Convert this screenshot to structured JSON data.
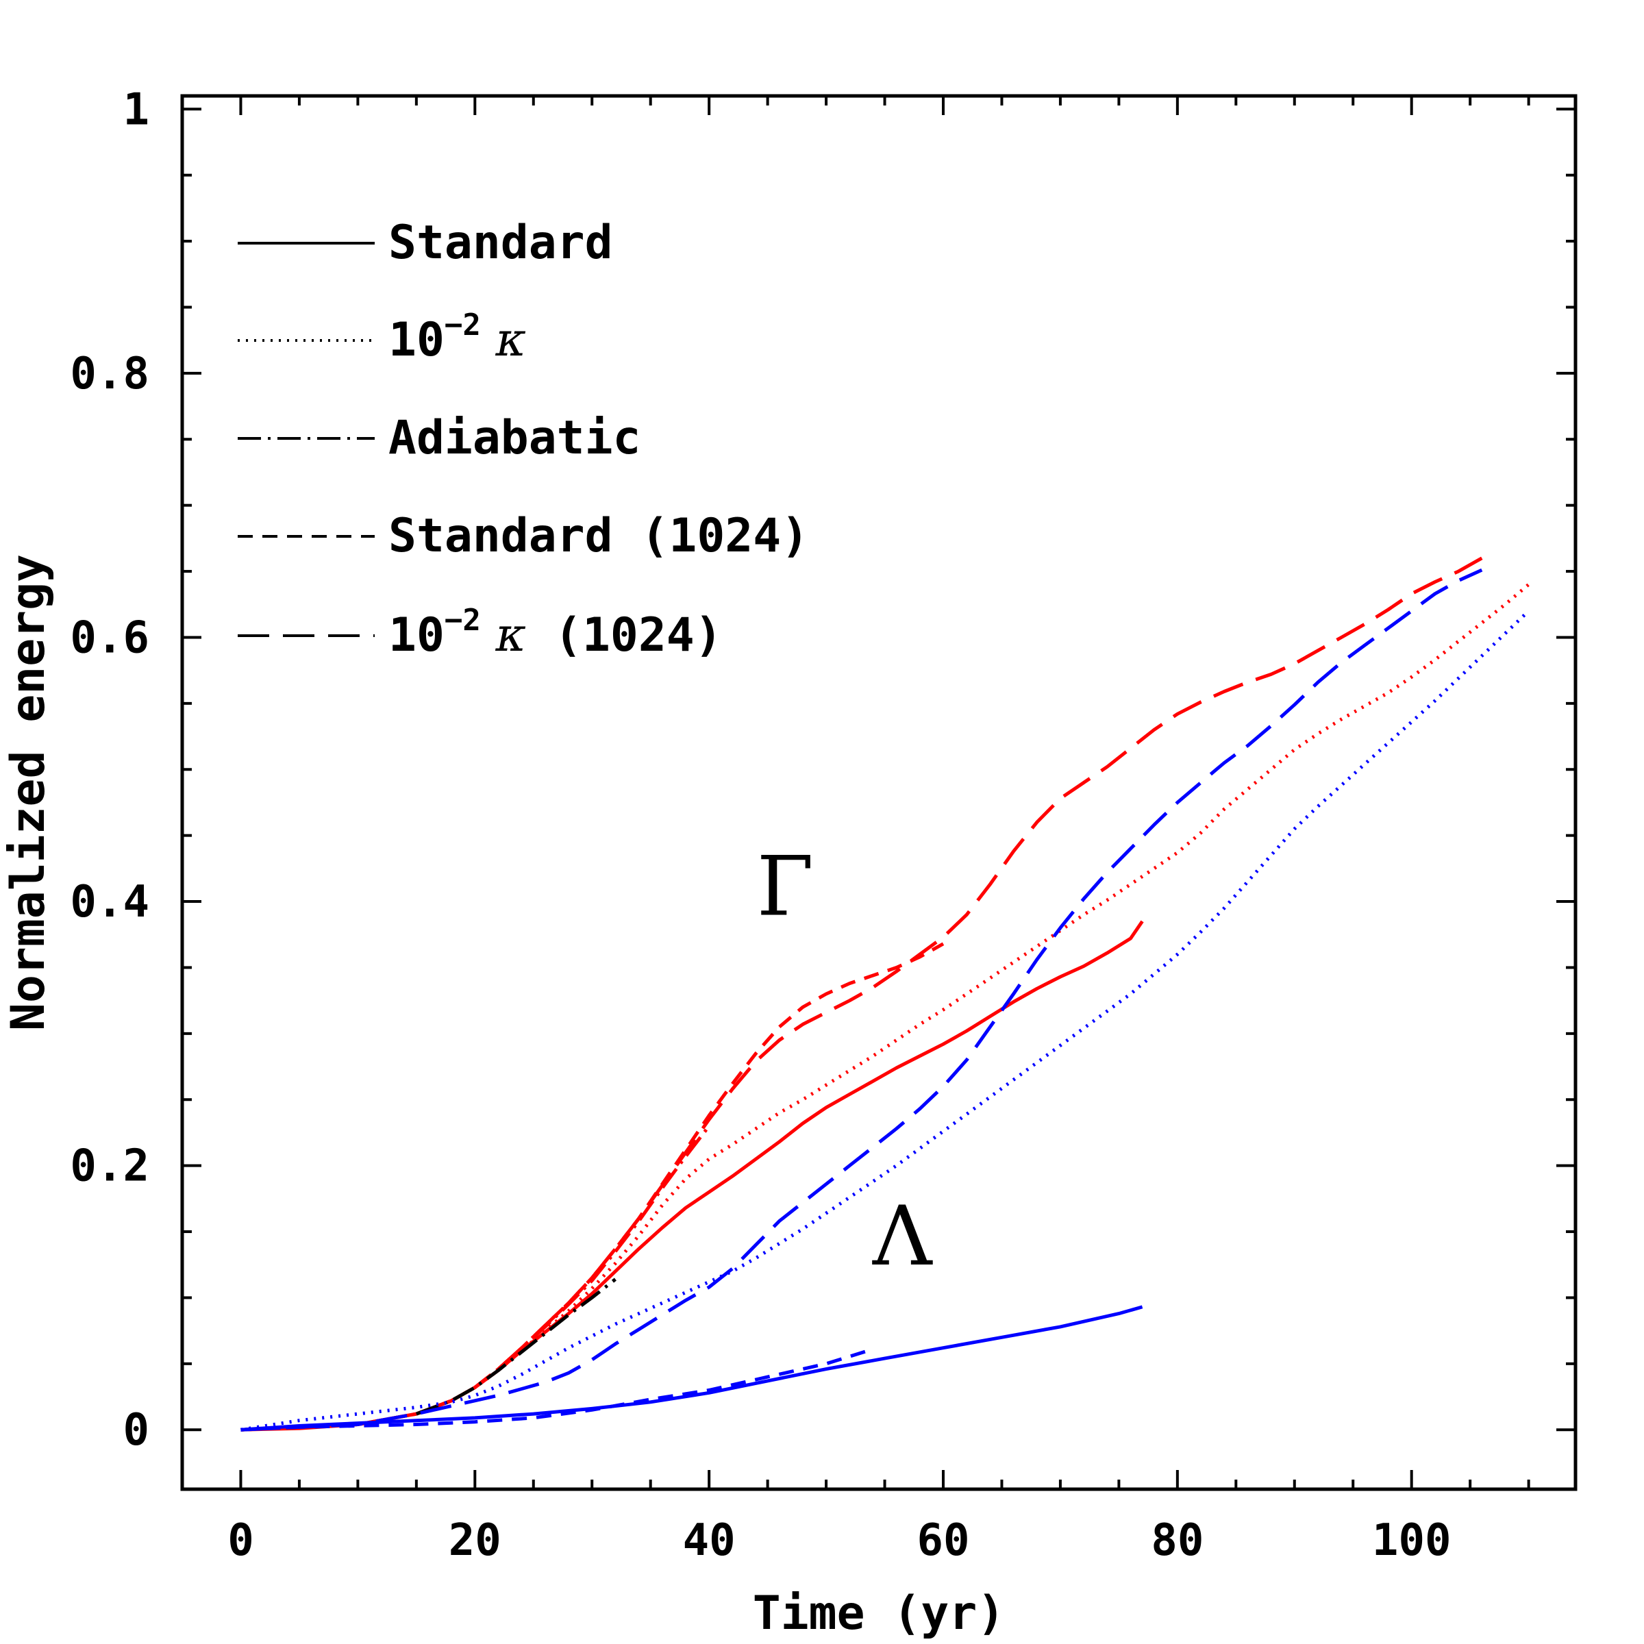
{
  "chart_data": {
    "type": "line",
    "xlabel": "Time (yr)",
    "ylabel": "Normalized energy",
    "xlim": [
      -5,
      114
    ],
    "ylim": [
      -0.045,
      1.01
    ],
    "x_ticks": [
      0,
      20,
      40,
      60,
      80,
      100
    ],
    "x_tick_labels": [
      "0",
      "20",
      "40",
      "60",
      "80",
      "100"
    ],
    "y_ticks": [
      0,
      0.2,
      0.4,
      0.6,
      0.8,
      1
    ],
    "y_tick_labels": [
      "0",
      "0.2",
      "0.4",
      "0.6",
      "0.8",
      "1"
    ],
    "grid": false,
    "legend_position": "top-left",
    "legend": [
      {
        "key": "standard",
        "label": "Standard",
        "dash": "solid"
      },
      {
        "key": "kappa",
        "label": "10",
        "exponent": "−2",
        "symbol": "κ",
        "suffix": "",
        "dash": "dotted"
      },
      {
        "key": "adiabatic",
        "label": "Adiabatic",
        "dash": "dashdot"
      },
      {
        "key": "standard1024",
        "label": "Standard (1024)",
        "dash": "dashed"
      },
      {
        "key": "kappa1024",
        "label": "10",
        "exponent": "−2",
        "symbol": "κ",
        "suffix": " (1024)",
        "dash": "longdash"
      }
    ],
    "annotations": [
      {
        "text": "Γ",
        "x": 46.5,
        "y": 0.39
      },
      {
        "text": "Λ",
        "x": 56.5,
        "y": 0.125
      }
    ],
    "colors": {
      "Gamma": "#ff0000",
      "Lambda": "#0000ff",
      "Adiabatic": "#000000"
    },
    "series": [
      {
        "name": "Γ Standard",
        "color": "#ff0000",
        "dash": "solid",
        "x": [
          0,
          5,
          10,
          15,
          18,
          20,
          22,
          24,
          26,
          28,
          30,
          32,
          34,
          36,
          38,
          40,
          42,
          44,
          46,
          48,
          50,
          52,
          54,
          56,
          58,
          60,
          62,
          64,
          66,
          68,
          70,
          72,
          74,
          76,
          77
        ],
        "y": [
          0,
          0.001,
          0.004,
          0.012,
          0.022,
          0.032,
          0.045,
          0.06,
          0.074,
          0.088,
          0.103,
          0.12,
          0.137,
          0.153,
          0.168,
          0.18,
          0.192,
          0.205,
          0.218,
          0.232,
          0.244,
          0.254,
          0.264,
          0.274,
          0.283,
          0.292,
          0.302,
          0.313,
          0.324,
          0.334,
          0.343,
          0.351,
          0.361,
          0.372,
          0.385
        ]
      },
      {
        "name": "Γ 10^-2 κ",
        "color": "#ff0000",
        "dash": "dotted",
        "x": [
          0,
          10,
          15,
          18,
          20,
          22,
          24,
          26,
          28,
          30,
          32,
          34,
          36,
          38,
          40,
          42,
          44,
          46,
          48,
          50,
          52,
          54,
          56,
          58,
          60,
          62,
          64,
          66,
          68,
          70,
          72,
          74,
          76,
          78,
          80,
          82,
          84,
          86,
          88,
          90,
          92,
          94,
          96,
          98,
          100,
          102,
          104,
          106,
          108,
          110
        ],
        "y": [
          0,
          0.004,
          0.012,
          0.022,
          0.032,
          0.045,
          0.06,
          0.075,
          0.09,
          0.107,
          0.126,
          0.147,
          0.17,
          0.19,
          0.205,
          0.216,
          0.228,
          0.24,
          0.25,
          0.261,
          0.272,
          0.283,
          0.295,
          0.307,
          0.318,
          0.33,
          0.342,
          0.354,
          0.366,
          0.378,
          0.39,
          0.401,
          0.413,
          0.425,
          0.437,
          0.452,
          0.47,
          0.485,
          0.5,
          0.515,
          0.527,
          0.538,
          0.548,
          0.558,
          0.57,
          0.583,
          0.597,
          0.611,
          0.625,
          0.64
        ]
      },
      {
        "name": "Γ Adiabatic",
        "color": "#ff0000",
        "dash": "dashdot",
        "x": [
          0,
          10,
          15,
          18,
          20,
          22,
          24,
          26,
          28,
          30,
          32,
          34,
          36,
          38,
          40
        ],
        "y": [
          0,
          0.004,
          0.012,
          0.022,
          0.032,
          0.046,
          0.062,
          0.078,
          0.095,
          0.113,
          0.135,
          0.158,
          0.183,
          0.207,
          0.23
        ]
      },
      {
        "name": "Γ Standard (1024)",
        "color": "#ff0000",
        "dash": "dashed",
        "x": [
          0,
          10,
          15,
          18,
          20,
          22,
          24,
          26,
          28,
          30,
          32,
          34,
          36,
          38,
          40,
          42,
          44,
          46,
          48,
          50,
          52,
          54,
          56,
          58,
          60
        ],
        "y": [
          0,
          0.004,
          0.012,
          0.022,
          0.032,
          0.046,
          0.062,
          0.079,
          0.096,
          0.115,
          0.137,
          0.16,
          0.186,
          0.212,
          0.238,
          0.262,
          0.285,
          0.305,
          0.32,
          0.33,
          0.338,
          0.344,
          0.35,
          0.358,
          0.368
        ]
      },
      {
        "name": "Γ 10^-2 κ (1024)",
        "color": "#ff0000",
        "dash": "longdash",
        "x": [
          0,
          10,
          15,
          18,
          20,
          22,
          24,
          26,
          28,
          30,
          32,
          34,
          36,
          38,
          40,
          42,
          44,
          46,
          48,
          50,
          52,
          54,
          56,
          58,
          60,
          62,
          64,
          66,
          68,
          70,
          72,
          74,
          76,
          78,
          80,
          82,
          84,
          86,
          88,
          90,
          92,
          94,
          96,
          98,
          100,
          102,
          104,
          106
        ],
        "y": [
          0,
          0.004,
          0.012,
          0.022,
          0.032,
          0.046,
          0.062,
          0.079,
          0.096,
          0.115,
          0.137,
          0.16,
          0.185,
          0.21,
          0.235,
          0.258,
          0.279,
          0.295,
          0.307,
          0.316,
          0.325,
          0.335,
          0.347,
          0.36,
          0.373,
          0.39,
          0.413,
          0.438,
          0.46,
          0.478,
          0.49,
          0.502,
          0.516,
          0.53,
          0.542,
          0.551,
          0.559,
          0.566,
          0.572,
          0.58,
          0.59,
          0.6,
          0.61,
          0.621,
          0.633,
          0.642,
          0.65,
          0.66
        ]
      },
      {
        "name": "Γ Adiabatic overlay",
        "color": "#000000",
        "dash": "dashdot",
        "x": [
          15,
          18,
          20,
          22,
          24,
          26,
          28,
          30,
          32
        ],
        "y": [
          0.012,
          0.022,
          0.032,
          0.045,
          0.059,
          0.073,
          0.087,
          0.1,
          0.114
        ]
      },
      {
        "name": "Λ Standard",
        "color": "#0000ff",
        "dash": "solid",
        "x": [
          0,
          5,
          10,
          15,
          20,
          25,
          30,
          35,
          40,
          45,
          50,
          55,
          60,
          65,
          70,
          75,
          77
        ],
        "y": [
          0,
          0.003,
          0.005,
          0.007,
          0.009,
          0.012,
          0.016,
          0.021,
          0.028,
          0.037,
          0.046,
          0.054,
          0.062,
          0.07,
          0.078,
          0.088,
          0.093
        ]
      },
      {
        "name": "Λ 10^-2 κ",
        "color": "#0000ff",
        "dash": "dotted",
        "x": [
          0,
          5,
          10,
          15,
          18,
          20,
          22,
          24,
          26,
          28,
          30,
          32,
          34,
          36,
          38,
          40,
          42,
          44,
          46,
          48,
          50,
          52,
          54,
          56,
          58,
          60,
          62,
          64,
          66,
          68,
          70,
          72,
          74,
          76,
          78,
          80,
          82,
          84,
          86,
          88,
          90,
          92,
          94,
          96,
          98,
          100,
          102,
          104,
          106,
          108,
          110
        ],
        "y": [
          0,
          0.007,
          0.012,
          0.017,
          0.021,
          0.026,
          0.033,
          0.042,
          0.052,
          0.062,
          0.071,
          0.08,
          0.088,
          0.096,
          0.104,
          0.112,
          0.12,
          0.13,
          0.141,
          0.152,
          0.164,
          0.176,
          0.188,
          0.2,
          0.213,
          0.226,
          0.239,
          0.252,
          0.265,
          0.278,
          0.291,
          0.304,
          0.317,
          0.33,
          0.345,
          0.36,
          0.377,
          0.395,
          0.415,
          0.435,
          0.455,
          0.472,
          0.488,
          0.504,
          0.52,
          0.536,
          0.552,
          0.569,
          0.586,
          0.603,
          0.62
        ]
      },
      {
        "name": "Λ Standard (1024)",
        "color": "#0000ff",
        "dash": "dashed",
        "x": [
          0,
          5,
          10,
          15,
          20,
          25,
          30,
          35,
          40,
          45,
          50,
          54
        ],
        "y": [
          0,
          0.002,
          0.003,
          0.004,
          0.006,
          0.009,
          0.015,
          0.023,
          0.03,
          0.04,
          0.05,
          0.061
        ]
      },
      {
        "name": "Λ 10^-2 κ (1024)",
        "color": "#0000ff",
        "dash": "longdash",
        "x": [
          0,
          10,
          15,
          18,
          20,
          22,
          24,
          26,
          28,
          30,
          32,
          34,
          36,
          38,
          40,
          42,
          44,
          46,
          48,
          50,
          52,
          54,
          56,
          58,
          60,
          62,
          64,
          66,
          68,
          70,
          72,
          74,
          76,
          78,
          80,
          82,
          84,
          86,
          88,
          90,
          92,
          94,
          96,
          98,
          100,
          102,
          104,
          106
        ],
        "y": [
          0,
          0.004,
          0.012,
          0.018,
          0.022,
          0.026,
          0.031,
          0.036,
          0.043,
          0.053,
          0.065,
          0.076,
          0.087,
          0.098,
          0.108,
          0.122,
          0.14,
          0.158,
          0.172,
          0.186,
          0.2,
          0.214,
          0.228,
          0.243,
          0.26,
          0.28,
          0.305,
          0.33,
          0.356,
          0.38,
          0.402,
          0.422,
          0.44,
          0.458,
          0.475,
          0.49,
          0.505,
          0.518,
          0.533,
          0.549,
          0.566,
          0.581,
          0.594,
          0.607,
          0.62,
          0.633,
          0.643,
          0.651
        ]
      }
    ]
  }
}
